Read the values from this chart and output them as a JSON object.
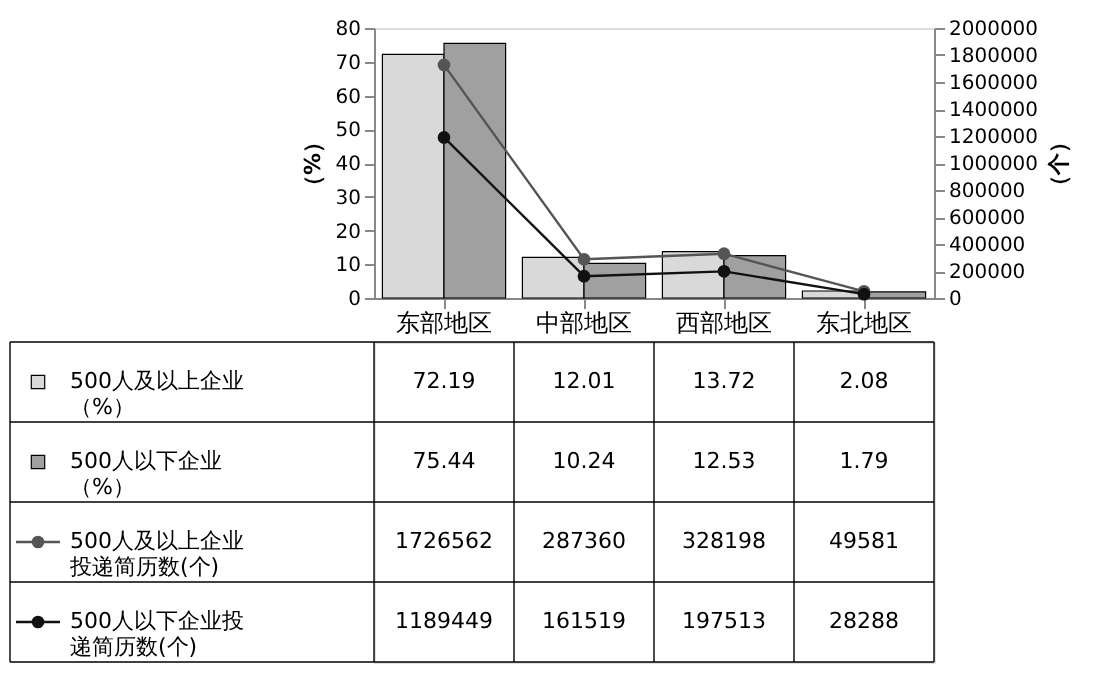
{
  "chart_data": {
    "type": "bar",
    "ylabel": "（%）",
    "y2label": "（个）",
    "categories": [
      "东部地区",
      "中部地区",
      "西部地区",
      "东北地区"
    ],
    "series": [
      {
        "name": "500人及以上企业（%）",
        "color": "#d9d9d9",
        "values": [
          72.19,
          12.01,
          13.72,
          2.08
        ]
      },
      {
        "name": "500人以下企业（%）",
        "color": "#a0a0a0",
        "values": [
          75.44,
          10.24,
          12.53,
          1.79
        ]
      },
      {
        "name": "500人及以上企业投递简历数(个)",
        "type": "line",
        "axis": "y2",
        "marker": "circle",
        "color": "#555555",
        "values": [
          1726562,
          287360,
          328198,
          49581
        ]
      },
      {
        "name": "500人以下企业投递简历数(个)",
        "type": "line",
        "axis": "y2",
        "marker": "circle",
        "color": "#111111",
        "values": [
          1189449,
          161519,
          197513,
          28288
        ]
      }
    ],
    "ylim": [
      0,
      80
    ],
    "yticks": [
      0,
      10,
      20,
      30,
      40,
      50,
      60,
      70,
      80
    ],
    "y2lim": [
      0,
      2000000
    ],
    "y2ticks": [
      0,
      200000,
      400000,
      600000,
      800000,
      1000000,
      1200000,
      1400000,
      1600000,
      1800000,
      2000000
    ],
    "data_labels": true,
    "grid": false,
    "legend": "bottom left"
  }
}
